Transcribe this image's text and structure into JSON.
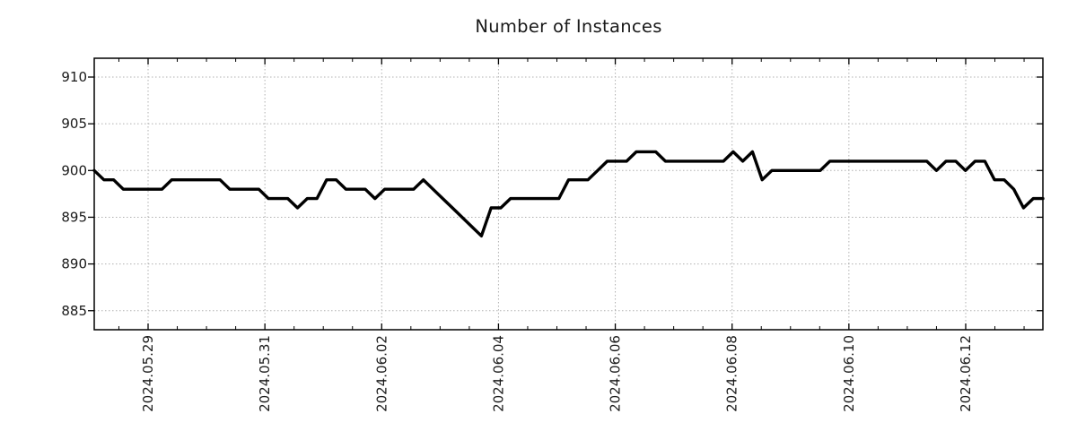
{
  "title": "Number of Instances",
  "chart_data": {
    "type": "line",
    "title": "Number of Instances",
    "series_name": "instances",
    "x_start": "2024-05-28 02:00",
    "x_step_hours": 4,
    "values": [
      900,
      899,
      899,
      898,
      898,
      898,
      898,
      898,
      899,
      899,
      899,
      899,
      899,
      899,
      898,
      898,
      898,
      898,
      897,
      897,
      897,
      896,
      897,
      897,
      899,
      899,
      898,
      898,
      898,
      897,
      898,
      898,
      898,
      898,
      899,
      898,
      897,
      896,
      895,
      894,
      893,
      896,
      896,
      897,
      897,
      897,
      897,
      897,
      897,
      899,
      899,
      899,
      900,
      901,
      901,
      901,
      902,
      902,
      902,
      901,
      901,
      901,
      901,
      901,
      901,
      901,
      902,
      901,
      902,
      899,
      900,
      900,
      900,
      900,
      900,
      900,
      901,
      901,
      901,
      901,
      901,
      901,
      901,
      901,
      901,
      901,
      901,
      900,
      901,
      901,
      900,
      901,
      901,
      899,
      899,
      898,
      896,
      897,
      897
    ],
    "x_tick_labels": [
      "2024.05.29",
      "2024.05.31",
      "2024.06.02",
      "2024.06.04",
      "2024.06.06",
      "2024.06.08",
      "2024.06.10",
      "2024.06.12"
    ],
    "x_tick_interval_days": 2,
    "x_minor_tick_interval_days": 0.5,
    "y_ticks": [
      885,
      890,
      895,
      900,
      905,
      910
    ],
    "ylim": [
      882.9,
      912.1
    ],
    "grid": true,
    "legend": "none",
    "line_color": "#000000",
    "grid_color": "#b0b0b0",
    "text_color": "#1a1a1a"
  }
}
